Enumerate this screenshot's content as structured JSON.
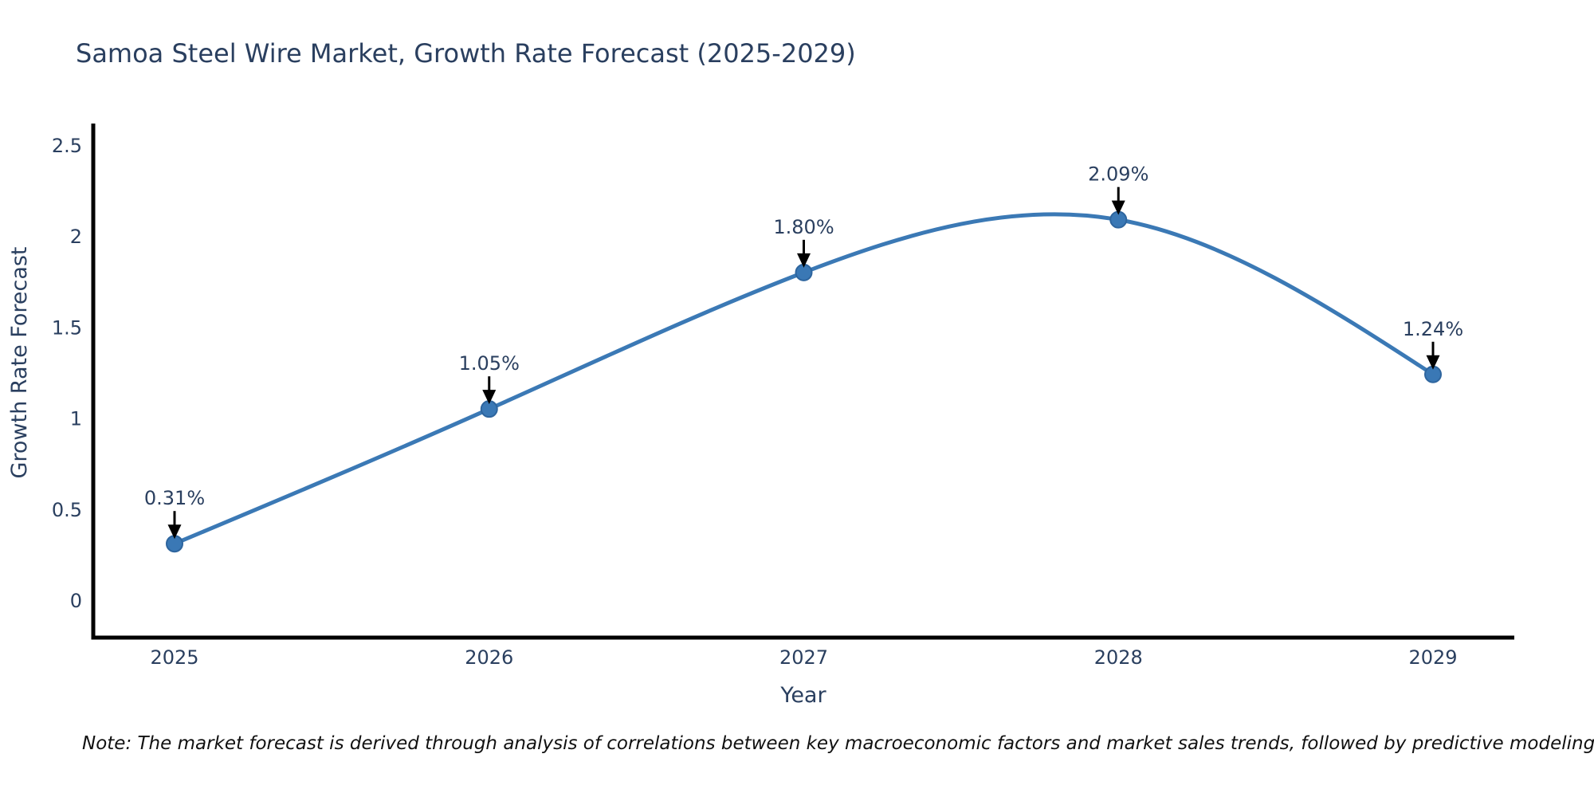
{
  "title": "Samoa Steel Wire Market, Growth Rate Forecast (2025-2029)",
  "note": "Note: The market forecast is derived through analysis of correlations between key macroeconomic factors and market sales trends, followed by predictive modeling to project future sales",
  "chart_data": {
    "type": "line",
    "title": "Samoa Steel Wire Market, Growth Rate Forecast (2025-2029)",
    "xlabel": "Year",
    "ylabel": "Growth Rate Forecast",
    "x": [
      2025,
      2026,
      2027,
      2028,
      2029
    ],
    "values": [
      0.31,
      1.05,
      1.8,
      2.09,
      1.24
    ],
    "point_labels": [
      "0.31%",
      "1.05%",
      "1.80%",
      "2.09%",
      "1.24%"
    ],
    "yticks": [
      0,
      0.5,
      1,
      1.5,
      2,
      2.5
    ],
    "ylim": [
      -0.2,
      2.6
    ],
    "xlim": [
      2024.74,
      2029.26
    ],
    "grid": false,
    "legend_position": "none",
    "line_shape": "spline",
    "annotation_style": "value label above point with black down arrow",
    "colors": {
      "line": "#3b79b5",
      "marker_fill": "#3a78b5",
      "marker_edge": "#2e659e",
      "axis_line": "#000000",
      "tick_text": "#2a3f5f",
      "annotation_text": "#2a3f5f",
      "arrow": "#000000",
      "title_text": "#2a3f5f",
      "note_text": "#111111",
      "background": "#ffffff"
    }
  }
}
